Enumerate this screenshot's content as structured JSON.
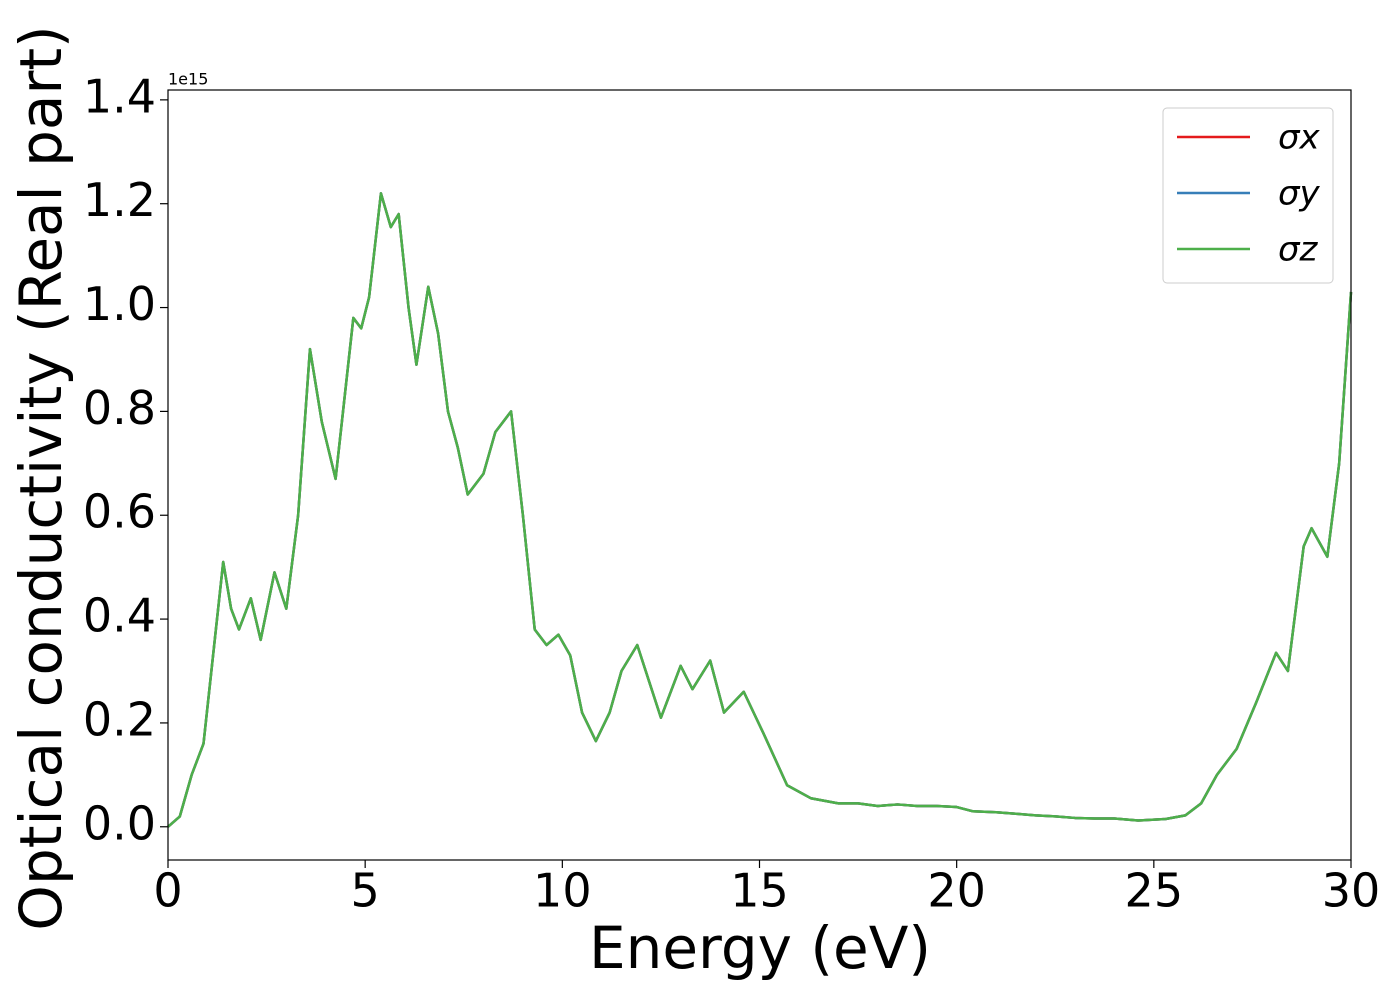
{
  "chart_data": {
    "type": "line",
    "xlabel": "Energy (eV)",
    "ylabel": "Optical conductivity (Real part)",
    "y_offset_text": "1e15",
    "x": [
      0,
      0.3,
      0.6,
      0.9,
      1.1,
      1.4,
      1.6,
      1.8,
      2.1,
      2.35,
      2.7,
      3.0,
      3.3,
      3.6,
      3.9,
      4.25,
      4.7,
      4.9,
      5.1,
      5.4,
      5.65,
      5.85,
      6.1,
      6.3,
      6.6,
      6.85,
      7.1,
      7.35,
      7.6,
      8.0,
      8.3,
      8.7,
      9.0,
      9.3,
      9.6,
      9.9,
      10.2,
      10.5,
      10.85,
      11.2,
      11.5,
      11.9,
      12.2,
      12.5,
      13.0,
      13.3,
      13.75,
      14.1,
      14.6,
      15.1,
      15.7,
      16.3,
      17.0,
      17.5,
      18.0,
      18.5,
      19.0,
      19.5,
      20.0,
      20.4,
      21.0,
      21.5,
      22.0,
      22.5,
      23.0,
      23.5,
      24.0,
      24.6,
      25.3,
      25.8,
      26.2,
      26.6,
      27.1,
      27.6,
      28.1,
      28.4,
      28.8,
      29.0,
      29.4,
      29.7,
      30.0
    ],
    "series": [
      {
        "name": "σx",
        "color": "#e41a1c",
        "values": [
          0,
          0.02,
          0.1,
          0.16,
          0.3,
          0.51,
          0.42,
          0.38,
          0.44,
          0.36,
          0.49,
          0.42,
          0.6,
          0.92,
          0.78,
          0.67,
          0.98,
          0.96,
          1.02,
          1.22,
          1.155,
          1.18,
          1.0,
          0.89,
          1.04,
          0.95,
          0.8,
          0.73,
          0.64,
          0.68,
          0.76,
          0.8,
          0.6,
          0.38,
          0.35,
          0.37,
          0.33,
          0.22,
          0.165,
          0.22,
          0.3,
          0.35,
          0.28,
          0.21,
          0.31,
          0.265,
          0.32,
          0.22,
          0.26,
          0.18,
          0.08,
          0.055,
          0.045,
          0.045,
          0.04,
          0.043,
          0.04,
          0.04,
          0.038,
          0.03,
          0.028,
          0.025,
          0.022,
          0.02,
          0.017,
          0.016,
          0.016,
          0.012,
          0.015,
          0.022,
          0.045,
          0.1,
          0.15,
          0.24,
          0.335,
          0.3,
          0.54,
          0.575,
          0.52,
          0.7,
          1.03
        ]
      },
      {
        "name": "σy",
        "color": "#377eb8",
        "values": [
          0,
          0.02,
          0.1,
          0.16,
          0.3,
          0.51,
          0.42,
          0.38,
          0.44,
          0.36,
          0.49,
          0.42,
          0.6,
          0.92,
          0.78,
          0.67,
          0.98,
          0.96,
          1.02,
          1.22,
          1.155,
          1.18,
          1.0,
          0.89,
          1.04,
          0.95,
          0.8,
          0.73,
          0.64,
          0.68,
          0.76,
          0.8,
          0.6,
          0.38,
          0.35,
          0.37,
          0.33,
          0.22,
          0.165,
          0.22,
          0.3,
          0.35,
          0.28,
          0.21,
          0.31,
          0.265,
          0.32,
          0.22,
          0.26,
          0.18,
          0.08,
          0.055,
          0.045,
          0.045,
          0.04,
          0.043,
          0.04,
          0.04,
          0.038,
          0.03,
          0.028,
          0.025,
          0.022,
          0.02,
          0.017,
          0.016,
          0.016,
          0.012,
          0.015,
          0.022,
          0.045,
          0.1,
          0.15,
          0.24,
          0.335,
          0.3,
          0.54,
          0.575,
          0.52,
          0.7,
          1.03
        ]
      },
      {
        "name": "σz",
        "color": "#4daf4a",
        "values": [
          0,
          0.02,
          0.1,
          0.16,
          0.3,
          0.51,
          0.42,
          0.38,
          0.44,
          0.36,
          0.49,
          0.42,
          0.6,
          0.92,
          0.78,
          0.67,
          0.98,
          0.96,
          1.02,
          1.22,
          1.155,
          1.18,
          1.0,
          0.89,
          1.04,
          0.95,
          0.8,
          0.73,
          0.64,
          0.68,
          0.76,
          0.8,
          0.6,
          0.38,
          0.35,
          0.37,
          0.33,
          0.22,
          0.165,
          0.22,
          0.3,
          0.35,
          0.28,
          0.21,
          0.31,
          0.265,
          0.32,
          0.22,
          0.26,
          0.18,
          0.08,
          0.055,
          0.045,
          0.045,
          0.04,
          0.043,
          0.04,
          0.04,
          0.038,
          0.03,
          0.028,
          0.025,
          0.022,
          0.02,
          0.017,
          0.016,
          0.016,
          0.012,
          0.015,
          0.022,
          0.045,
          0.1,
          0.15,
          0.24,
          0.335,
          0.3,
          0.54,
          0.575,
          0.52,
          0.7,
          1.03
        ]
      }
    ],
    "xlim": [
      0,
      30
    ],
    "xticks": [
      0,
      5,
      10,
      15,
      20,
      25,
      30
    ],
    "ylim": [
      -0.064,
      1.419
    ],
    "yticks": [
      {
        "value": 0,
        "label": "0.0"
      },
      0.2,
      0.4,
      0.6,
      0.8,
      {
        "value": 1,
        "label": "1.0"
      },
      1.2,
      1.4
    ],
    "legend": "upper right",
    "grid": false
  }
}
